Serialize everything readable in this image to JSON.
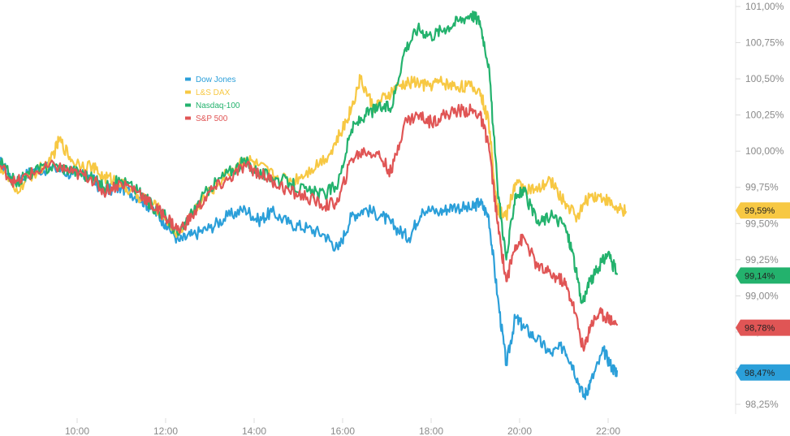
{
  "chart_data": {
    "type": "line",
    "ylim": [
      98.15,
      101.05
    ],
    "x_ticks": [
      "10:00",
      "12:00",
      "14:00",
      "16:00",
      "18:00",
      "20:00",
      "22:00"
    ],
    "y_ticks": [
      "98,25%",
      "98,50%",
      "98,75%",
      "99,00%",
      "99,25%",
      "99,50%",
      "99,75%",
      "100,00%",
      "100,25%",
      "100,50%",
      "100,75%",
      "101,00%"
    ],
    "x_tick_hours": [
      10,
      12,
      14,
      16,
      18,
      20,
      22
    ],
    "y_tick_values": [
      98.25,
      98.5,
      98.75,
      99.0,
      99.25,
      99.5,
      99.75,
      100.0,
      100.25,
      100.5,
      100.75,
      101.0
    ],
    "x_range": [
      8.25,
      22.9
    ],
    "grid": false,
    "legend_position": "top-left",
    "series": [
      {
        "name": "Dow Jones",
        "color": "#2b9fd9",
        "last_label": "98,47%",
        "last_value": 98.47,
        "points": [
          [
            8.25,
            99.93
          ],
          [
            8.6,
            99.78
          ],
          [
            9.0,
            99.87
          ],
          [
            9.5,
            99.88
          ],
          [
            9.9,
            99.84
          ],
          [
            10.3,
            99.82
          ],
          [
            10.6,
            99.72
          ],
          [
            11.0,
            99.75
          ],
          [
            11.4,
            99.68
          ],
          [
            11.7,
            99.6
          ],
          [
            12.0,
            99.5
          ],
          [
            12.3,
            99.38
          ],
          [
            12.6,
            99.42
          ],
          [
            13.0,
            99.47
          ],
          [
            13.4,
            99.55
          ],
          [
            13.8,
            99.6
          ],
          [
            14.1,
            99.52
          ],
          [
            14.4,
            99.58
          ],
          [
            14.8,
            99.5
          ],
          [
            15.2,
            99.47
          ],
          [
            15.6,
            99.42
          ],
          [
            15.9,
            99.32
          ],
          [
            16.2,
            99.55
          ],
          [
            16.5,
            99.6
          ],
          [
            16.9,
            99.55
          ],
          [
            17.2,
            99.47
          ],
          [
            17.5,
            99.4
          ],
          [
            17.8,
            99.6
          ],
          [
            18.2,
            99.58
          ],
          [
            18.5,
            99.62
          ],
          [
            18.9,
            99.6
          ],
          [
            19.1,
            99.65
          ],
          [
            19.3,
            99.55
          ],
          [
            19.5,
            99.0
          ],
          [
            19.7,
            98.52
          ],
          [
            19.9,
            98.85
          ],
          [
            20.1,
            98.78
          ],
          [
            20.4,
            98.7
          ],
          [
            20.7,
            98.6
          ],
          [
            21.0,
            98.65
          ],
          [
            21.2,
            98.52
          ],
          [
            21.45,
            98.3
          ],
          [
            21.6,
            98.4
          ],
          [
            21.9,
            98.62
          ],
          [
            22.1,
            98.5
          ],
          [
            22.2,
            98.48
          ]
        ]
      },
      {
        "name": "L&S DAX",
        "color": "#f7c843",
        "last_label": "99,59%",
        "last_value": 99.59,
        "points": [
          [
            8.25,
            99.9
          ],
          [
            8.6,
            99.72
          ],
          [
            9.0,
            99.84
          ],
          [
            9.4,
            99.93
          ],
          [
            9.6,
            100.08
          ],
          [
            9.9,
            99.93
          ],
          [
            10.3,
            99.9
          ],
          [
            10.6,
            99.82
          ],
          [
            10.9,
            99.8
          ],
          [
            11.2,
            99.72
          ],
          [
            11.6,
            99.66
          ],
          [
            11.9,
            99.58
          ],
          [
            12.3,
            99.42
          ],
          [
            12.6,
            99.58
          ],
          [
            13.0,
            99.72
          ],
          [
            13.4,
            99.85
          ],
          [
            13.8,
            99.95
          ],
          [
            14.1,
            99.9
          ],
          [
            14.5,
            99.82
          ],
          [
            14.9,
            99.8
          ],
          [
            15.3,
            99.88
          ],
          [
            15.7,
            99.98
          ],
          [
            16.0,
            100.15
          ],
          [
            16.2,
            100.3
          ],
          [
            16.4,
            100.5
          ],
          [
            16.7,
            100.3
          ],
          [
            17.0,
            100.38
          ],
          [
            17.3,
            100.45
          ],
          [
            17.6,
            100.48
          ],
          [
            17.9,
            100.45
          ],
          [
            18.2,
            100.48
          ],
          [
            18.5,
            100.45
          ],
          [
            18.8,
            100.45
          ],
          [
            19.1,
            100.42
          ],
          [
            19.3,
            100.2
          ],
          [
            19.5,
            99.6
          ],
          [
            19.7,
            99.55
          ],
          [
            19.9,
            99.78
          ],
          [
            20.1,
            99.75
          ],
          [
            20.4,
            99.72
          ],
          [
            20.7,
            99.8
          ],
          [
            21.0,
            99.65
          ],
          [
            21.3,
            99.55
          ],
          [
            21.6,
            99.7
          ],
          [
            21.9,
            99.68
          ],
          [
            22.2,
            99.6
          ],
          [
            22.4,
            99.58
          ]
        ]
      },
      {
        "name": "Nasdaq-100",
        "color": "#23b26d",
        "last_label": "99,14%",
        "last_value": 99.14,
        "points": [
          [
            8.25,
            99.93
          ],
          [
            8.6,
            99.78
          ],
          [
            9.0,
            99.86
          ],
          [
            9.5,
            99.9
          ],
          [
            9.9,
            99.87
          ],
          [
            10.3,
            99.82
          ],
          [
            10.6,
            99.75
          ],
          [
            11.0,
            99.8
          ],
          [
            11.4,
            99.72
          ],
          [
            11.7,
            99.62
          ],
          [
            12.0,
            99.55
          ],
          [
            12.3,
            99.42
          ],
          [
            12.6,
            99.58
          ],
          [
            13.0,
            99.75
          ],
          [
            13.4,
            99.85
          ],
          [
            13.8,
            99.93
          ],
          [
            14.1,
            99.85
          ],
          [
            14.4,
            99.82
          ],
          [
            14.8,
            99.78
          ],
          [
            15.2,
            99.72
          ],
          [
            15.6,
            99.7
          ],
          [
            15.9,
            99.78
          ],
          [
            16.2,
            100.15
          ],
          [
            16.5,
            100.25
          ],
          [
            16.8,
            100.3
          ],
          [
            17.1,
            100.3
          ],
          [
            17.4,
            100.7
          ],
          [
            17.7,
            100.85
          ],
          [
            18.0,
            100.8
          ],
          [
            18.3,
            100.85
          ],
          [
            18.6,
            100.9
          ],
          [
            18.9,
            100.95
          ],
          [
            19.1,
            100.9
          ],
          [
            19.3,
            100.6
          ],
          [
            19.5,
            99.75
          ],
          [
            19.7,
            99.25
          ],
          [
            19.9,
            99.7
          ],
          [
            20.1,
            99.72
          ],
          [
            20.4,
            99.5
          ],
          [
            20.7,
            99.55
          ],
          [
            21.0,
            99.5
          ],
          [
            21.2,
            99.3
          ],
          [
            21.4,
            98.95
          ],
          [
            21.6,
            99.1
          ],
          [
            21.8,
            99.2
          ],
          [
            22.0,
            99.3
          ],
          [
            22.2,
            99.15
          ]
        ]
      },
      {
        "name": "S&P 500",
        "color": "#e05555",
        "last_label": "98,78%",
        "last_value": 98.78,
        "points": [
          [
            8.25,
            99.9
          ],
          [
            8.6,
            99.78
          ],
          [
            9.0,
            99.85
          ],
          [
            9.5,
            99.9
          ],
          [
            9.9,
            99.85
          ],
          [
            10.3,
            99.82
          ],
          [
            10.6,
            99.72
          ],
          [
            11.0,
            99.78
          ],
          [
            11.4,
            99.72
          ],
          [
            11.7,
            99.62
          ],
          [
            12.0,
            99.55
          ],
          [
            12.3,
            99.45
          ],
          [
            12.6,
            99.55
          ],
          [
            13.0,
            99.72
          ],
          [
            13.4,
            99.8
          ],
          [
            13.8,
            99.9
          ],
          [
            14.1,
            99.85
          ],
          [
            14.4,
            99.8
          ],
          [
            14.8,
            99.72
          ],
          [
            15.2,
            99.68
          ],
          [
            15.6,
            99.62
          ],
          [
            15.9,
            99.65
          ],
          [
            16.2,
            99.95
          ],
          [
            16.5,
            100.0
          ],
          [
            16.8,
            99.98
          ],
          [
            17.1,
            99.85
          ],
          [
            17.4,
            100.2
          ],
          [
            17.7,
            100.25
          ],
          [
            18.0,
            100.2
          ],
          [
            18.3,
            100.25
          ],
          [
            18.6,
            100.28
          ],
          [
            18.9,
            100.28
          ],
          [
            19.1,
            100.25
          ],
          [
            19.3,
            100.05
          ],
          [
            19.5,
            99.5
          ],
          [
            19.7,
            99.1
          ],
          [
            19.9,
            99.35
          ],
          [
            20.1,
            99.4
          ],
          [
            20.4,
            99.2
          ],
          [
            20.7,
            99.15
          ],
          [
            21.0,
            99.1
          ],
          [
            21.2,
            98.95
          ],
          [
            21.45,
            98.62
          ],
          [
            21.6,
            98.8
          ],
          [
            21.8,
            98.88
          ],
          [
            22.0,
            98.85
          ],
          [
            22.2,
            98.8
          ]
        ]
      }
    ]
  }
}
